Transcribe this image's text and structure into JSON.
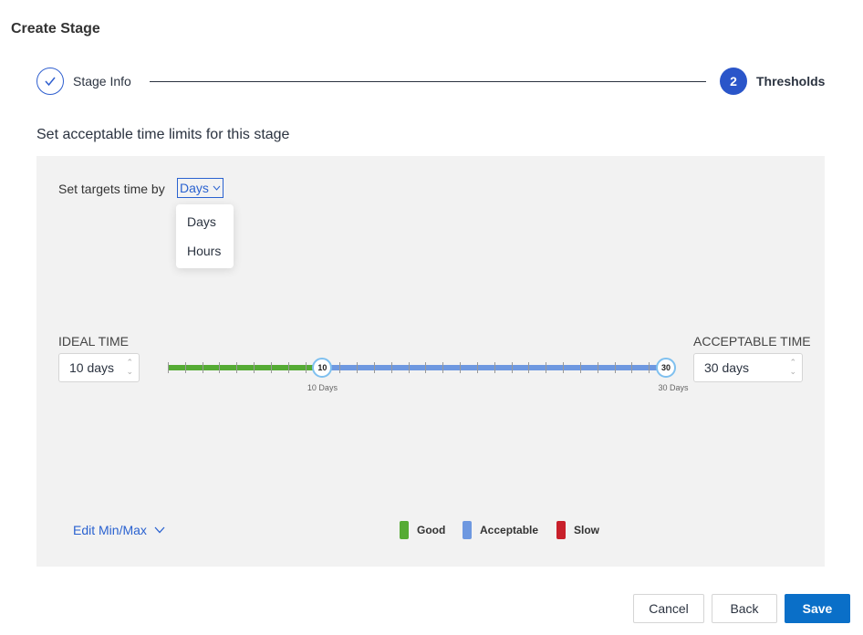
{
  "header": {
    "title": "Create Stage"
  },
  "stepper": {
    "steps": [
      {
        "label": "Stage Info",
        "state": "completed",
        "icon": "check-icon"
      },
      {
        "number": "2",
        "label": "Thresholds",
        "state": "active"
      }
    ]
  },
  "subtitle": "Set acceptable time limits for this stage",
  "unit_selector": {
    "label": "Set targets time by",
    "value": "Days",
    "options": [
      "Days",
      "Hours"
    ]
  },
  "ideal": {
    "label": "IDEAL TIME",
    "value": "10 days",
    "handle": "10",
    "marker": "10 Days"
  },
  "acceptable": {
    "label": "ACCEPTABLE TIME",
    "value": "30 days",
    "handle": "30",
    "marker": "30 Days"
  },
  "edit_minmax": "Edit Min/Max",
  "legend": [
    {
      "label": "Good",
      "color": "#55ab34"
    },
    {
      "label": "Acceptable",
      "color": "#6e98e0"
    },
    {
      "label": "Slow",
      "color": "#c8202b"
    }
  ],
  "buttons": {
    "cancel": "Cancel",
    "back": "Back",
    "save": "Save"
  },
  "colors": {
    "accent": "#0a6fc8",
    "step_active": "#2a55c9"
  }
}
